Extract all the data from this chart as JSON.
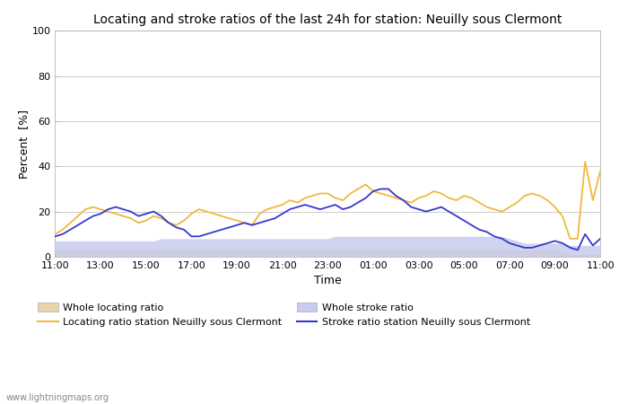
{
  "title": "Locating and stroke ratios of the last 24h for station: Neuilly sous Clermont",
  "xlabel": "Time",
  "ylabel": "Percent  [%]",
  "xlim": [
    0,
    24
  ],
  "ylim": [
    0,
    100
  ],
  "yticks": [
    0,
    20,
    40,
    60,
    80,
    100
  ],
  "xtick_labels": [
    "11:00",
    "13:00",
    "15:00",
    "17:00",
    "19:00",
    "21:00",
    "23:00",
    "01:00",
    "03:00",
    "05:00",
    "07:00",
    "09:00",
    "11:00"
  ],
  "xtick_positions": [
    0,
    2,
    4,
    6,
    8,
    10,
    12,
    14,
    16,
    18,
    20,
    22,
    24
  ],
  "watermark": "www.lightningmaps.org",
  "background_color": "#ffffff",
  "plot_bg_color": "#ffffff",
  "locating_ratio_color": "#f0b840",
  "locating_fill_color": "#e8d4a8",
  "stroke_ratio_color": "#3838cc",
  "stroke_fill_color": "#c8ccee",
  "legend_labels": [
    "Whole locating ratio",
    "Locating ratio station Neuilly sous Clermont",
    "Whole stroke ratio",
    "Stroke ratio station Neuilly sous Clermont"
  ],
  "x": [
    0.0,
    0.33,
    0.67,
    1.0,
    1.33,
    1.67,
    2.0,
    2.33,
    2.67,
    3.0,
    3.33,
    3.67,
    4.0,
    4.33,
    4.67,
    5.0,
    5.33,
    5.67,
    6.0,
    6.33,
    6.67,
    7.0,
    7.33,
    7.67,
    8.0,
    8.33,
    8.67,
    9.0,
    9.33,
    9.67,
    10.0,
    10.33,
    10.67,
    11.0,
    11.33,
    11.67,
    12.0,
    12.33,
    12.67,
    13.0,
    13.33,
    13.67,
    14.0,
    14.33,
    14.67,
    15.0,
    15.33,
    15.67,
    16.0,
    16.33,
    16.67,
    17.0,
    17.33,
    17.67,
    18.0,
    18.33,
    18.67,
    19.0,
    19.33,
    19.67,
    20.0,
    20.33,
    20.67,
    21.0,
    21.33,
    21.67,
    22.0,
    22.33,
    22.67,
    23.0,
    23.33,
    23.67,
    24.0
  ],
  "locating_station": [
    10,
    12,
    15,
    18,
    21,
    22,
    21,
    20,
    19,
    18,
    17,
    15,
    16,
    18,
    17,
    15,
    14,
    16,
    19,
    21,
    20,
    19,
    18,
    17,
    16,
    15,
    14,
    19,
    21,
    22,
    23,
    25,
    24,
    26,
    27,
    28,
    28,
    26,
    25,
    28,
    30,
    32,
    29,
    28,
    27,
    26,
    25,
    24,
    26,
    27,
    29,
    28,
    26,
    25,
    27,
    26,
    24,
    22,
    21,
    20,
    22,
    24,
    27,
    28,
    27,
    25,
    22,
    18,
    8,
    8,
    42,
    25,
    38
  ],
  "stroke_station": [
    9,
    10,
    12,
    14,
    16,
    18,
    19,
    21,
    22,
    21,
    20,
    18,
    19,
    20,
    18,
    15,
    13,
    12,
    9,
    9,
    10,
    11,
    12,
    13,
    14,
    15,
    14,
    15,
    16,
    17,
    19,
    21,
    22,
    23,
    22,
    21,
    22,
    23,
    21,
    22,
    24,
    26,
    29,
    30,
    30,
    27,
    25,
    22,
    21,
    20,
    21,
    22,
    20,
    18,
    16,
    14,
    12,
    11,
    9,
    8,
    6,
    5,
    4,
    4,
    5,
    6,
    7,
    6,
    4,
    3,
    10,
    5,
    8
  ],
  "locating_whole": [
    3,
    3,
    3,
    3,
    3,
    3,
    3,
    3,
    3,
    3,
    3,
    3,
    3,
    3,
    3,
    3,
    3,
    3,
    3,
    3,
    3,
    3,
    3,
    3,
    3,
    3,
    3,
    3,
    3,
    3,
    3,
    3,
    3,
    3,
    3,
    3,
    3,
    3,
    3,
    3,
    3,
    3,
    3,
    3,
    3,
    3,
    3,
    3,
    3,
    3,
    3,
    3,
    3,
    3,
    3,
    3,
    3,
    3,
    3,
    3,
    3,
    3,
    3,
    3,
    3,
    3,
    3,
    3,
    1,
    1,
    1,
    1,
    1
  ],
  "stroke_whole": [
    7,
    7,
    7,
    7,
    7,
    7,
    7,
    7,
    7,
    7,
    7,
    7,
    7,
    7,
    8,
    8,
    8,
    8,
    8,
    8,
    8,
    8,
    8,
    8,
    8,
    8,
    8,
    8,
    8,
    8,
    8,
    8,
    8,
    8,
    8,
    8,
    8,
    9,
    9,
    9,
    9,
    9,
    9,
    9,
    9,
    9,
    9,
    9,
    9,
    9,
    9,
    9,
    9,
    9,
    9,
    9,
    9,
    9,
    9,
    9,
    8,
    7,
    6,
    6,
    6,
    6,
    6,
    6,
    5,
    5,
    5,
    5,
    5
  ]
}
